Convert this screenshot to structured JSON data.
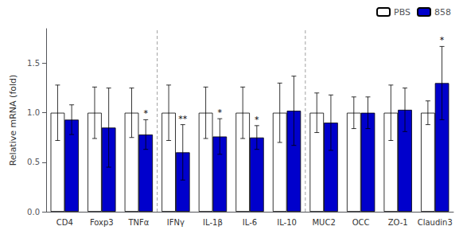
{
  "chart_data": {
    "type": "bar",
    "categories": [
      "CD4",
      "Foxp3",
      "TNFα",
      "IFNγ",
      "IL-1β",
      "IL-6",
      "IL-10",
      "MUC2",
      "OCC",
      "ZO-1",
      "Claudin3"
    ],
    "series": [
      {
        "name": "PBS",
        "color": "#ffffff",
        "values": [
          1.0,
          1.0,
          1.0,
          1.0,
          1.0,
          1.0,
          1.0,
          1.0,
          1.0,
          1.0,
          1.0
        ],
        "errors": [
          0.28,
          0.26,
          0.25,
          0.28,
          0.26,
          0.26,
          0.3,
          0.2,
          0.16,
          0.28,
          0.12
        ]
      },
      {
        "name": "858",
        "color": "#0000cc",
        "values": [
          0.93,
          0.85,
          0.78,
          0.6,
          0.76,
          0.75,
          1.02,
          0.9,
          1.0,
          1.03,
          1.3
        ],
        "errors": [
          0.15,
          0.4,
          0.15,
          0.28,
          0.18,
          0.12,
          0.35,
          0.28,
          0.16,
          0.22,
          0.37
        ],
        "annotations": [
          null,
          null,
          "*",
          "**",
          "*",
          "*",
          null,
          null,
          null,
          null,
          "*"
        ]
      }
    ],
    "ylabel": "Relative mRNA (fold)",
    "ylim": [
      0,
      1.85
    ],
    "yticks": [
      {
        "value": 0,
        "label": "0.0"
      },
      0.5,
      {
        "value": 1,
        "label": "1.0"
      },
      1.5
    ],
    "dividers": [
      2.5,
      6.5
    ],
    "grid": false,
    "legend": "upper right"
  }
}
